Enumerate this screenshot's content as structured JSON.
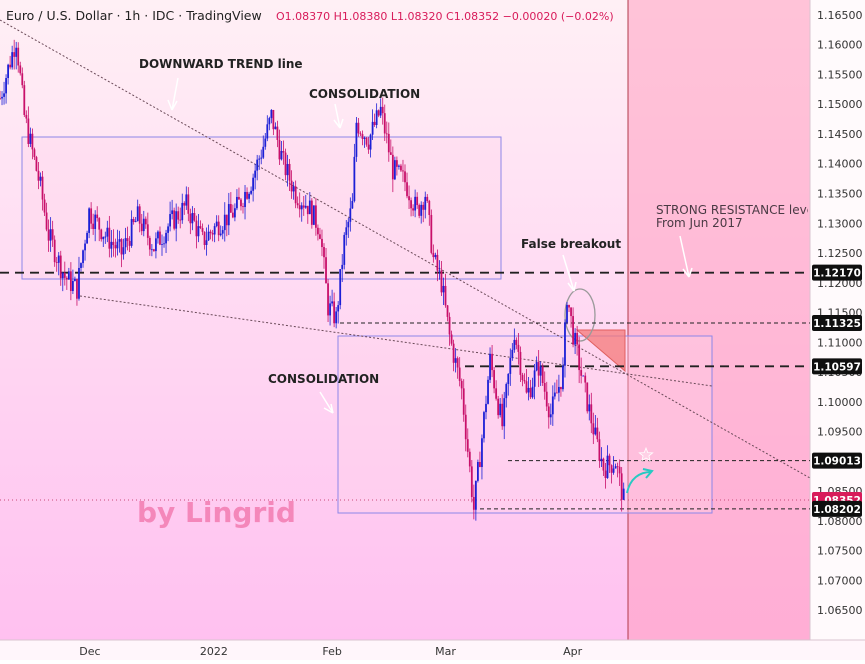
{
  "header": {
    "symbol": "Euro / U.S. Dollar · 1h · IDC · TradingView",
    "ohlc": "O1.08370 H1.08380 L1.08320 C1.08352 −0.00020 (−0.02%)"
  },
  "colors": {
    "bg_top": "#fff0f5",
    "bg_bottom": "#ffbff0",
    "candle_up": "#1c1fd6",
    "candle_down": "#c8106a",
    "box_stroke": "#8d86e8",
    "price_tag": "#0f0f0f",
    "current_tag": "#d81b5a",
    "watermark": "#f27bb0",
    "arrow": "#28c9c2"
  },
  "chart_data": {
    "type": "candlestick",
    "instrument": "Euro / U.S. Dollar",
    "timeframe": "1h",
    "source": "IDC",
    "last": {
      "open": 1.0837,
      "high": 1.0838,
      "low": 1.0832,
      "close": 1.08352,
      "change": -0.0002,
      "change_pct": -0.02
    },
    "ylim": [
      1.06,
      1.1675
    ],
    "y_ticks": [
      1.065,
      1.07,
      1.075,
      1.08,
      1.085,
      1.09,
      1.095,
      1.1,
      1.105,
      1.11,
      1.115,
      1.12,
      1.125,
      1.13,
      1.135,
      1.14,
      1.145,
      1.15,
      1.155,
      1.16,
      1.165
    ],
    "x_ticks": [
      {
        "label": "Dec",
        "t": 0.111
      },
      {
        "label": "2022",
        "t": 0.264
      },
      {
        "label": "Feb",
        "t": 0.41
      },
      {
        "label": "Mar",
        "t": 0.55
      },
      {
        "label": "Apr",
        "t": 0.707
      }
    ],
    "price_path": [
      [
        0.0,
        1.151
      ],
      [
        0.02,
        1.161
      ],
      [
        0.03,
        1.148
      ],
      [
        0.05,
        1.136
      ],
      [
        0.06,
        1.128
      ],
      [
        0.08,
        1.121
      ],
      [
        0.095,
        1.119
      ],
      [
        0.11,
        1.132
      ],
      [
        0.13,
        1.128
      ],
      [
        0.15,
        1.125
      ],
      [
        0.17,
        1.131
      ],
      [
        0.19,
        1.126
      ],
      [
        0.21,
        1.13
      ],
      [
        0.23,
        1.133
      ],
      [
        0.25,
        1.127
      ],
      [
        0.27,
        1.13
      ],
      [
        0.29,
        1.132
      ],
      [
        0.31,
        1.137
      ],
      [
        0.325,
        1.143
      ],
      [
        0.335,
        1.148
      ],
      [
        0.35,
        1.14
      ],
      [
        0.365,
        1.135
      ],
      [
        0.38,
        1.133
      ],
      [
        0.395,
        1.129
      ],
      [
        0.405,
        1.116
      ],
      [
        0.415,
        1.114
      ],
      [
        0.425,
        1.127
      ],
      [
        0.435,
        1.133
      ],
      [
        0.44,
        1.147
      ],
      [
        0.455,
        1.144
      ],
      [
        0.47,
        1.149
      ],
      [
        0.485,
        1.139
      ],
      [
        0.5,
        1.137
      ],
      [
        0.515,
        1.132
      ],
      [
        0.525,
        1.135
      ],
      [
        0.535,
        1.124
      ],
      [
        0.545,
        1.12
      ],
      [
        0.555,
        1.111
      ],
      [
        0.57,
        1.102
      ],
      [
        0.585,
        1.082
      ],
      [
        0.595,
        1.094
      ],
      [
        0.605,
        1.107
      ],
      [
        0.62,
        1.096
      ],
      [
        0.635,
        1.112
      ],
      [
        0.65,
        1.101
      ],
      [
        0.665,
        1.106
      ],
      [
        0.68,
        1.098
      ],
      [
        0.695,
        1.105
      ],
      [
        0.7,
        1.118
      ],
      [
        0.708,
        1.111
      ],
      [
        0.72,
        1.103
      ],
      [
        0.735,
        1.094
      ],
      [
        0.745,
        1.089
      ],
      [
        0.76,
        1.09
      ],
      [
        0.77,
        1.0835
      ]
    ],
    "levels": [
      {
        "label": "1.12170",
        "y": 1.1217,
        "style": "dashed-thick"
      },
      {
        "label": "1.11325",
        "y": 1.11325,
        "style": "dashed"
      },
      {
        "label": "1.10597",
        "y": 1.10597,
        "style": "dashed-thick"
      },
      {
        "label": "1.09013",
        "y": 1.09013,
        "style": "dashed"
      },
      {
        "label": "1.08352",
        "y": 1.08352,
        "style": "current"
      },
      {
        "label": "1.08202",
        "y": 1.08202,
        "style": "dashed"
      }
    ],
    "annotations": [
      "DOWNWARD TREND line",
      "CONSOLIDATION",
      "CONSOLIDATION",
      "False breakout",
      "STRONG RESISTANCE leve",
      "From Jun 2017"
    ],
    "watermark": "by Lingrid"
  }
}
